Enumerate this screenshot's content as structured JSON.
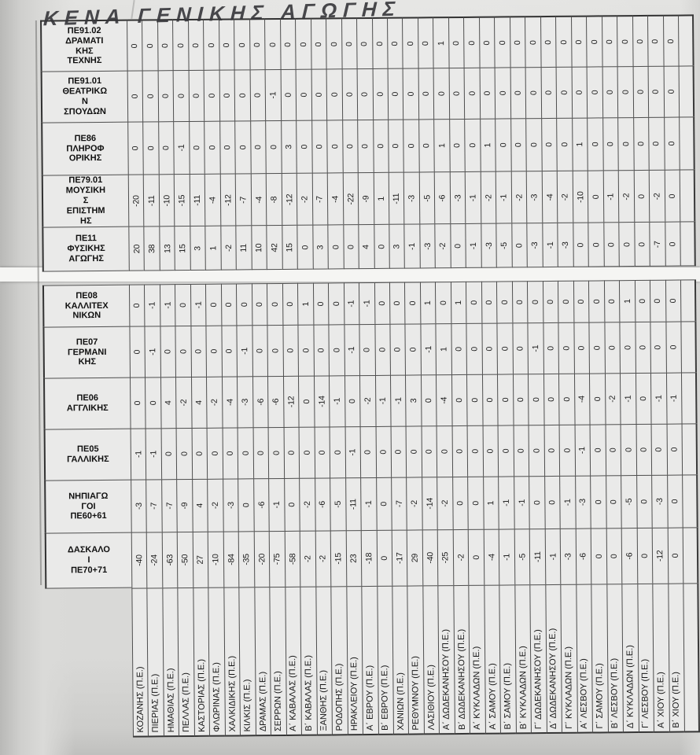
{
  "title": "ΚΕΝΑ ΓΕΝΙΚΗΣ ΑΓΩΓΗΣ",
  "colors": {
    "paper": "#d8d8d6",
    "cell": "#eaeae9",
    "grid_line": "#4f4f4f",
    "ink": "#161616",
    "seam": "#f5f5f3"
  },
  "table": {
    "type": "table",
    "orientation": "rotated-90-ccw",
    "specialty_rows": [
      {
        "id": "ΠΕ91.02",
        "label": "ΠΕ91.02 ΔΡΑΜΑΤΙΚΗΣ ΤΕΧΝΗΣ",
        "display": "ΠΕ91.02\nΔΡΑΜΑΤΙ\nΚΗΣ\nΤΕΧΝΗΣ",
        "values": [
          0,
          0,
          0,
          0,
          0,
          0,
          0,
          0,
          0,
          0,
          0,
          0,
          0,
          0,
          0,
          0,
          0,
          0,
          0,
          0,
          1,
          0,
          0,
          0,
          0,
          0,
          0,
          0,
          0,
          0,
          0,
          0,
          0,
          0,
          0,
          0
        ]
      },
      {
        "id": "ΠΕ91.01",
        "label": "ΠΕ91.01 ΘΕΑΤΡΙΚΩΝ ΣΠΟΥΔΩΝ",
        "display": "ΠΕ91.01\nΘΕΑΤΡΙΚΩ\nΝ\nΣΠΟΥΔΩΝ",
        "values": [
          0,
          0,
          0,
          0,
          0,
          0,
          0,
          0,
          0,
          -1,
          0,
          0,
          0,
          0,
          0,
          0,
          0,
          0,
          0,
          0,
          0,
          0,
          0,
          0,
          0,
          0,
          0,
          0,
          0,
          0,
          0,
          0,
          0,
          0,
          0,
          0
        ]
      },
      {
        "id": "ΠΕ86",
        "label": "ΠΕ86 ΠΛΗΡΟΦΟΡΙΚΗΣ",
        "display": "ΠΕ86\nΠΛΗΡΟΦ\nΟΡΙΚΗΣ",
        "values": [
          0,
          0,
          0,
          -1,
          0,
          0,
          0,
          0,
          0,
          0,
          3,
          0,
          0,
          0,
          0,
          0,
          0,
          0,
          0,
          0,
          1,
          0,
          0,
          1,
          0,
          0,
          0,
          0,
          0,
          1,
          0,
          0,
          0,
          0,
          0,
          0
        ]
      },
      {
        "id": "ΠΕ79.01",
        "label": "ΠΕ79.01 ΜΟΥΣΙΚΗΣ ΕΠΙΣΤΗΜΗΣ",
        "display": "ΠΕ79.01\nΜΟΥΣΙΚΗ\nΣ\nΕΠΙΣΤΗΜ\nΗΣ",
        "values": [
          -20,
          -11,
          -10,
          -15,
          -11,
          -4,
          -12,
          -7,
          -4,
          -8,
          -12,
          -2,
          -7,
          -4,
          -22,
          -9,
          1,
          -11,
          -3,
          -5,
          -6,
          -3,
          -1,
          -2,
          -1,
          -2,
          -3,
          -4,
          -2,
          -10,
          0,
          -1,
          -2,
          0,
          -2,
          0
        ]
      },
      {
        "id": "ΠΕ11",
        "label": "ΠΕ11 ΦΥΣΙΚΗΣ ΑΓΩΓΗΣ",
        "display": "ΠΕ11\nΦΥΣΙΚΗΣ\nΑΓΩΓΗΣ",
        "values": [
          20,
          38,
          13,
          15,
          3,
          1,
          -2,
          11,
          10,
          42,
          15,
          0,
          3,
          0,
          0,
          4,
          0,
          3,
          -1,
          -3,
          -2,
          0,
          -1,
          -3,
          -5,
          0,
          -3,
          -1,
          -3,
          0,
          0,
          0,
          0,
          0,
          -7,
          0
        ]
      },
      {
        "id": "ΠΕ08",
        "label": "ΠΕ08 ΚΑΛΛΙΤΕΧΝΙΚΩΝ",
        "display": "ΠΕ08\nΚΑΛΛΙΤΕΧ\nΝΙΚΩΝ",
        "values": [
          0,
          -1,
          -1,
          0,
          -1,
          0,
          0,
          0,
          0,
          0,
          0,
          1,
          0,
          0,
          -1,
          -1,
          0,
          0,
          0,
          1,
          0,
          1,
          0,
          0,
          0,
          0,
          0,
          0,
          0,
          0,
          0,
          0,
          1,
          0,
          0,
          0
        ]
      },
      {
        "id": "ΠΕ07",
        "label": "ΠΕ07 ΓΕΡΜΑΝΙΚΗΣ",
        "display": "ΠΕ07\nΓΕΡΜΑΝΙ\nΚΗΣ",
        "values": [
          0,
          -1,
          0,
          0,
          0,
          0,
          0,
          -1,
          0,
          0,
          0,
          0,
          0,
          0,
          -1,
          0,
          0,
          0,
          0,
          -1,
          1,
          0,
          0,
          0,
          0,
          0,
          -1,
          0,
          0,
          0,
          0,
          0,
          0,
          0,
          0,
          0
        ]
      },
      {
        "id": "ΠΕ06",
        "label": "ΠΕ06 ΑΓΓΛΙΚΗΣ",
        "display": "ΠΕ06\nΑΓΓΛΙΚΗΣ",
        "values": [
          0,
          0,
          4,
          -2,
          4,
          -2,
          -4,
          -3,
          -6,
          -6,
          -12,
          0,
          -14,
          -1,
          0,
          -2,
          -1,
          -1,
          3,
          0,
          -4,
          0,
          0,
          0,
          0,
          0,
          0,
          0,
          0,
          -4,
          0,
          -2,
          -1,
          0,
          -1,
          -1
        ]
      },
      {
        "id": "ΠΕ05",
        "label": "ΠΕ05 ΓΑΛΛΙΚΗΣ",
        "display": "ΠΕ05\nΓΑΛΛΙΚΗΣ",
        "values": [
          -1,
          -1,
          0,
          0,
          0,
          0,
          0,
          0,
          0,
          0,
          0,
          0,
          0,
          0,
          -1,
          0,
          0,
          0,
          0,
          0,
          0,
          0,
          0,
          0,
          0,
          0,
          0,
          0,
          0,
          -1,
          0,
          0,
          0,
          0,
          0,
          0
        ]
      },
      {
        "id": "ΠΕ60+61",
        "label": "ΝΗΠΙΑΓΩΓΟΙ ΠΕ60+61",
        "display": "ΝΗΠΙΑΓΩ\nΓΟΙ\nΠΕ60+61",
        "values": [
          -3,
          -7,
          -7,
          -9,
          4,
          -2,
          -3,
          0,
          -6,
          -1,
          0,
          -2,
          -6,
          -5,
          -11,
          -1,
          0,
          -7,
          -2,
          -14,
          -2,
          0,
          0,
          1,
          -1,
          -1,
          0,
          0,
          -1,
          -3,
          0,
          0,
          -5,
          0,
          -3,
          0
        ]
      },
      {
        "id": "ΠΕ70+71",
        "label": "ΔΑΣΚΑΛΟΙ ΠΕ70+71",
        "display": "ΔΑΣΚΑΛΟ\nΙ\nΠΕ70+71",
        "values": [
          -40,
          -24,
          -63,
          -50,
          27,
          -10,
          -84,
          -35,
          -20,
          -75,
          -58,
          -2,
          -2,
          -15,
          23,
          -18,
          0,
          -17,
          29,
          -40,
          -25,
          -2,
          0,
          -4,
          -1,
          -5,
          -11,
          -1,
          -3,
          -6,
          0,
          0,
          -6,
          0,
          -12,
          0
        ]
      }
    ],
    "regions": [
      "ΚΟΖΑΝΗΣ (Π.Ε.)",
      "ΠΙΕΡΙΑΣ (Π.Ε.)",
      "ΗΜΑΘΙΑΣ (Π.Ε.)",
      "ΠΕΛΛΑΣ (Π.Ε.)",
      "ΚΑΣΤΟΡΙΑΣ (Π.Ε.)",
      "ΦΛΩΡΙΝΑΣ (Π.Ε.)",
      "ΧΑΛΚΙΔΙΚΗΣ (Π.Ε.)",
      "ΚΙΛΚΙΣ (Π.Ε.)",
      "ΔΡΑΜΑΣ (Π.Ε.)",
      "ΣΕΡΡΩΝ (Π.Ε.)",
      "Α΄ ΚΑΒΑΛΑΣ (Π.Ε.)",
      "Β΄ ΚΑΒΑΛΑΣ (Π.Ε.)",
      "ΞΑΝΘΗΣ (Π.Ε.)",
      "ΡΟΔΟΠΗΣ (Π.Ε.)",
      "ΗΡΑΚΛΕΙΟΥ (Π.Ε.)",
      "Α΄ ΕΒΡΟΥ (Π.Ε.)",
      "Β΄ ΕΒΡΟΥ (Π.Ε.)",
      "ΧΑΝΙΩΝ (Π.Ε.)",
      "ΡΕΘΥΜΝΟΥ (Π.Ε.)",
      "ΛΑΣΙΘΙΟΥ (Π.Ε.)",
      "Α΄ ΔΩΔΕΚΑΝΗΣΟΥ (Π.Ε.)",
      "Β΄ ΔΩΔΕΚΑΝΗΣΟΥ (Π.Ε.)",
      "Α΄ ΚΥΚΛΑΔΩΝ (Π.Ε.)",
      "Α΄ ΣΑΜΟΥ (Π.Ε.)",
      "Β΄ ΣΑΜΟΥ (Π.Ε.)",
      "Β΄ ΚΥΚΛΑΔΩΝ (Π.Ε.)",
      "Γ΄ ΔΩΔΕΚΑΝΗΣΟΥ (Π.Ε.)",
      "Δ΄ ΔΩΔΕΚΑΝΗΣΟΥ (Π.Ε.)",
      "Γ΄ ΚΥΚΛΑΔΩΝ (Π.Ε.)",
      "Α΄ ΛΕΣΒΟΥ (Π.Ε.)",
      "Γ΄ ΣΑΜΟΥ (Π.Ε.)",
      "Β΄ ΛΕΣΒΟΥ (Π.Ε.)",
      "Δ΄ ΚΥΚΛΑΔΩΝ (Π.Ε.)",
      "Γ΄ ΛΕΣΒΟΥ (Π.Ε.)",
      "Α΄ ΧΙΟΥ (Π.Ε.)",
      "Β΄ ΧΙΟΥ (Π.Ε.)"
    ]
  }
}
